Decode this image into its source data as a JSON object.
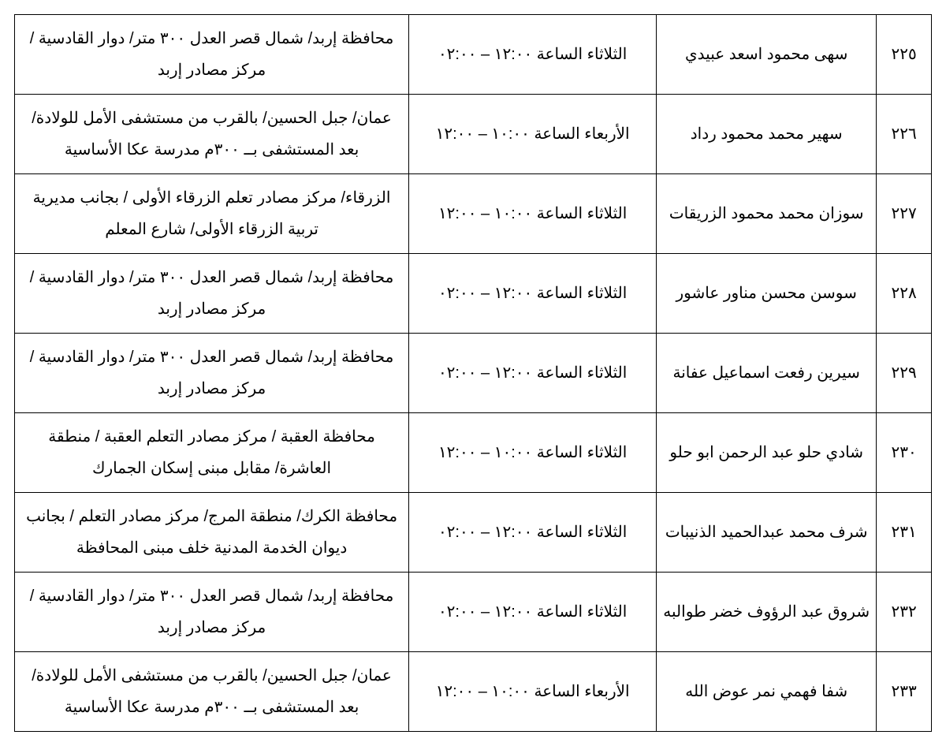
{
  "table": {
    "columns": [
      "num",
      "name",
      "time",
      "location"
    ],
    "col_widths_pct": [
      6,
      24,
      27,
      43
    ],
    "font_size_pt": 20,
    "line_height": 2.0,
    "border_color": "#000000",
    "text_color": "#000000",
    "background_color": "#ffffff",
    "rows": [
      {
        "num": "٢٢٥",
        "name": "سهى محمود اسعد عبيدي",
        "time": "الثلاثاء  الساعة ١٢:٠٠ – ٠٢:٠٠",
        "location": "محافظة إربد/ شمال قصر العدل ٣٠٠ متر/ دوار القادسية / مركز مصادر إربد"
      },
      {
        "num": "٢٢٦",
        "name": "سهير محمد محمود رداد",
        "time": "الأربعاء  الساعة ١٠:٠٠ – ١٢:٠٠",
        "location": "عمان/  جبل الحسين/ بالقرب من مستشفى الأمل للولادة/ بعد المستشفى بــ ٣٠٠م مدرسة عكا الأساسية"
      },
      {
        "num": "٢٢٧",
        "name": "سوزان محمد محمود الزريقات",
        "time": "الثلاثاء  الساعة ١٠:٠٠ – ١٢:٠٠",
        "location": "الزرقاء/ مركز مصادر تعلم الزرقاء الأولى / بجانب مديرية تربية الزرقاء الأولى/  شارع المعلم"
      },
      {
        "num": "٢٢٨",
        "name": "سوسن محسن مناور عاشور",
        "time": "الثلاثاء  الساعة ١٢:٠٠ – ٠٢:٠٠",
        "location": "محافظة إربد/ شمال قصر العدل ٣٠٠ متر/ دوار القادسية / مركز مصادر إربد"
      },
      {
        "num": "٢٢٩",
        "name": "سيرين رفعت اسماعيل عفانة",
        "time": "الثلاثاء  الساعة ١٢:٠٠ – ٠٢:٠٠",
        "location": "محافظة إربد/ شمال قصر العدل ٣٠٠ متر/ دوار القادسية / مركز مصادر إربد"
      },
      {
        "num": "٢٣٠",
        "name": "شادي حلو عبد الرحمن ابو حلو",
        "time": "الثلاثاء  الساعة ١٠:٠٠ – ١٢:٠٠",
        "location": "محافظة العقبة / مركز مصادر التعلم العقبة / منطقة العاشرة/ مقابل مبنى إسكان الجمارك"
      },
      {
        "num": "٢٣١",
        "name": "شرف محمد عبدالحميد الذنيبات",
        "time": "الثلاثاء  الساعة ١٢:٠٠ – ٠٢:٠٠",
        "location": "محافظة الكرك/  منطقة المرج/ مركز مصادر التعلم / بجانب ديوان الخدمة المدنية خلف مبنى المحافظة"
      },
      {
        "num": "٢٣٢",
        "name": "شروق عبد الرؤوف خضر طوالبه",
        "time": "الثلاثاء  الساعة ١٢:٠٠ – ٠٢:٠٠",
        "location": "محافظة إربد/ شمال قصر العدل ٣٠٠ متر/ دوار القادسية / مركز مصادر إربد"
      },
      {
        "num": "٢٣٣",
        "name": "شفا فهمي نمر عوض الله",
        "time": "الأربعاء  الساعة ١٠:٠٠ – ١٢:٠٠",
        "location": "عمان/  جبل الحسين/ بالقرب من مستشفى الأمل للولادة/ بعد المستشفى بــ ٣٠٠م مدرسة عكا الأساسية"
      }
    ]
  }
}
